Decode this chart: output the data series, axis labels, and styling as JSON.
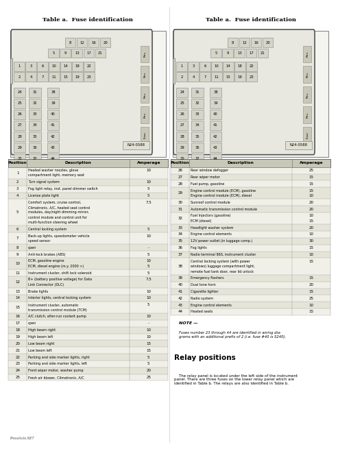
{
  "title": "Table a.  Fuse identification",
  "bg_color": "#ffffff",
  "left_table": {
    "headers": [
      "Position",
      "Description",
      "Amperage"
    ],
    "rows": [
      [
        "1",
        "Heated washer nozzles, glove\ncompartment light, memory seat",
        "10"
      ],
      [
        "2",
        "Turn signal system",
        "10"
      ],
      [
        "3",
        "Fog light relay, inst. panel dimmer switch",
        "5"
      ],
      [
        "4",
        "License plate light",
        "5"
      ],
      [
        "5",
        "Comfort system, cruise control,\nClimatronic, A/C, heated seat control\nmodules, day/night dimming mirror,\ncontrol module and control unit for\nmulti-function steering wheel",
        "7.5"
      ],
      [
        "6",
        "Central locking system",
        "5"
      ],
      [
        "7",
        "Back-up lights, speedometer vehicle\nspeed sensor",
        "10"
      ],
      [
        "8",
        "open",
        "-"
      ],
      [
        "9",
        "Anti-lock brakes (ABS)",
        "5"
      ],
      [
        "10",
        "ECM, gasoline engine\nECM, diesel engine (m.y. 2000 >)",
        "10\n5"
      ],
      [
        "11",
        "Instrument cluster, shift lock solenoid",
        "5"
      ],
      [
        "12",
        "B+ (battery positive voltage) for Data\nLink Connector (DLC)",
        "7.5"
      ],
      [
        "13",
        "Brake lights",
        "10"
      ],
      [
        "14",
        "Interior lights, central locking system",
        "10"
      ],
      [
        "15",
        "Instrument cluster, automatic\ntransmission control module (TCM)",
        "5"
      ],
      [
        "16",
        "A/C clutch, after-run coolant pump",
        "10"
      ],
      [
        "17",
        "open",
        "-"
      ],
      [
        "18",
        "High beam right",
        "10"
      ],
      [
        "19",
        "High beam left",
        "10"
      ],
      [
        "20",
        "Low beam right",
        "15"
      ],
      [
        "21",
        "Low beam left",
        "15"
      ],
      [
        "22",
        "Parking and side marker lights, right",
        "5"
      ],
      [
        "23",
        "Parking and side marker lights, left",
        "5"
      ],
      [
        "24",
        "Front wiper motor, washer pump",
        "20"
      ],
      [
        "25",
        "Fresh air blower, Climatronic, A/C",
        "25"
      ]
    ]
  },
  "right_table": {
    "headers": [
      "Position",
      "Description",
      "Amperage"
    ],
    "rows": [
      [
        "26",
        "Rear window defogger",
        "25"
      ],
      [
        "27",
        "Rear wiper motor",
        "15"
      ],
      [
        "28",
        "Fuel pump, gasoline",
        "15"
      ],
      [
        "29",
        "Engine control module (ECM), gasoline\nEngine control module (ECM), diesel",
        "15\n10"
      ],
      [
        "30",
        "Sunroof control module",
        "20"
      ],
      [
        "31",
        "Automatic transmission control module",
        "20"
      ],
      [
        "32",
        "Fuel Injectors (gasoline)\nECM (diesel)",
        "10\n15"
      ],
      [
        "33",
        "Headlight washer system",
        "20"
      ],
      [
        "34",
        "Engine control elements",
        "10"
      ],
      [
        "35",
        "12V power outlet (in luggage comp.)",
        "30"
      ],
      [
        "36",
        "Fog lights",
        "15"
      ],
      [
        "37",
        "Radio terminal 86S, instrument cluster",
        "10"
      ],
      [
        "38",
        "Central locking system (with power\nwindows) luggage compartment light,\nremote fuel tank door, rear lid unlock",
        "15"
      ],
      [
        "39",
        "Emergency flashers",
        "15"
      ],
      [
        "40",
        "Dual tone horn",
        "20"
      ],
      [
        "41",
        "Cigarette lighter",
        "15"
      ],
      [
        "42",
        "Radio system",
        "25"
      ],
      [
        "43",
        "Engine control elements",
        "10"
      ],
      [
        "44",
        "Heated seats",
        "15"
      ]
    ]
  },
  "note_bold": "NOTE —",
  "note_text": "Fuses number 23 through 44 are identified in wiring dia-\ngrams with an additional prefix of 2 (i.e. fuse #40 is S240).",
  "relay_title": "Relay positions",
  "relay_text_parts": [
    [
      "    The relay panel is located under the left side of the instrument\npanel. There are three fuses on the lower relay panel which are\nidentified in ",
      "normal"
    ],
    [
      "Table b",
      "bold"
    ],
    [
      ". The relays are also identified in ",
      "normal"
    ],
    [
      "Table b",
      "bold"
    ],
    [
      ".",
      "normal"
    ]
  ],
  "relay_text_plain": "    The relay panel is located under the left side of the instrument\npanel. There are three fuses on the lower relay panel which are\nidentified in Table b. The relays are also identified in Table b.",
  "watermark": "PressAuto.NET",
  "n24_label": "N24-0588",
  "fuse_top_row1": [
    "8",
    "12",
    "16",
    "20"
  ],
  "fuse_top_row2": [
    "5",
    "9",
    "13",
    "17",
    "21"
  ],
  "fuse_mid_row1": [
    "1",
    "3",
    "6",
    "10",
    "14",
    "18",
    "22"
  ],
  "fuse_mid_row2": [
    "2",
    "4",
    "7",
    "11",
    "15",
    "19",
    "23"
  ],
  "fuse_bot_col1": [
    "24",
    "25",
    "26",
    "27",
    "28",
    "29",
    "30"
  ],
  "fuse_bot_col2": [
    "31",
    "32",
    "33",
    "34",
    "35",
    "36",
    "37"
  ],
  "fuse_bot_col3": [
    "38",
    "39",
    "40",
    "41",
    "42",
    "43",
    "44"
  ],
  "relay_labels": [
    "Res.",
    "Res.",
    "Res.",
    "Res.",
    "Fuse"
  ]
}
